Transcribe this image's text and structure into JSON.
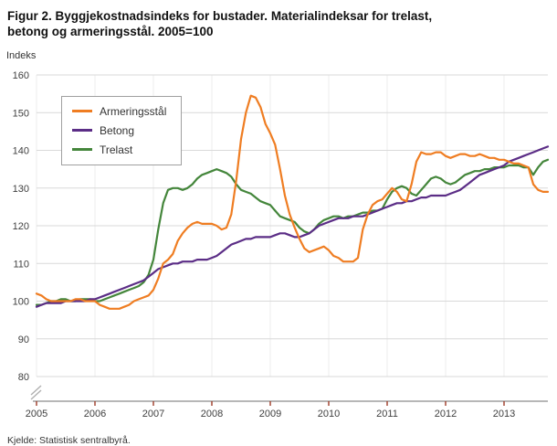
{
  "title_line1": "Figur 2. Byggjekostnadsindeks for bustader. Materialindeksar for trelast,",
  "title_line2": "betong og armeringsstål. 2005=100",
  "ylabel": "Indeks",
  "source": "Kjelde: Statistisk sentralbyrå.",
  "style": {
    "grid_color": "#d9d9d9",
    "vgrid_color": "#ececec",
    "axis_color": "#8c8c8c",
    "tick_color": "#9e3a26",
    "break_color": "#b0b0b0",
    "text_color": "#404040"
  },
  "chart_data": {
    "type": "line",
    "title": "Figur 2. Byggjekostnadsindeks for bustader. Materialindeksar for trelast, betong og armeringsstål. 2005=100",
    "xlabel": "",
    "ylabel": "Indeks",
    "x_start": 2005,
    "x_step": "monthly",
    "x_ticks": [
      2005,
      2006,
      2007,
      2008,
      2009,
      2010,
      2011,
      2012,
      2013
    ],
    "y_ticks": [
      80,
      90,
      100,
      110,
      120,
      130,
      140,
      150,
      160
    ],
    "ylim": [
      80,
      160
    ],
    "grid": true,
    "axis_break": true,
    "legend_position": "top-left",
    "series": [
      {
        "name": "Armeringsstål",
        "color": "#ef7d22",
        "values": [
          102,
          101.5,
          100.5,
          100,
          100,
          100,
          100,
          100,
          100.5,
          100.5,
          100,
          100,
          100,
          99,
          98.5,
          98,
          98,
          98,
          98.5,
          99,
          100,
          100.5,
          101,
          101.5,
          103,
          106,
          110,
          111,
          112.5,
          116,
          118,
          119.5,
          120.5,
          121,
          120.5,
          120.5,
          120.5,
          120,
          119,
          119.5,
          123,
          132,
          143,
          150,
          154.5,
          154,
          151.5,
          147,
          144.5,
          141.5,
          135,
          128,
          123,
          119.5,
          116.5,
          114,
          113,
          113.5,
          114,
          114.5,
          113.5,
          112,
          111.5,
          110.5,
          110.5,
          110.5,
          111.5,
          119,
          123,
          125.5,
          126.5,
          127,
          128.5,
          130,
          129,
          127,
          126.5,
          131,
          137,
          139.5,
          139,
          139,
          139.5,
          139.5,
          138.5,
          138,
          138.5,
          139,
          139,
          138.5,
          138.5,
          139,
          138.5,
          138,
          138,
          137.5,
          137.5,
          137,
          136.5,
          136.5,
          136,
          135.5,
          131,
          129.5,
          129,
          129
        ]
      },
      {
        "name": "Betong",
        "color": "#5b2d86",
        "values": [
          98.5,
          99,
          99.5,
          99.5,
          99.5,
          99.5,
          100,
          100,
          100,
          100,
          100,
          100.5,
          100.5,
          101,
          101.5,
          102,
          102.5,
          103,
          103.5,
          104,
          104.5,
          105,
          105.5,
          106.5,
          107.5,
          108.5,
          109,
          109.5,
          110,
          110,
          110.5,
          110.5,
          110.5,
          111,
          111,
          111,
          111.5,
          112,
          113,
          114,
          115,
          115.5,
          116,
          116.5,
          116.5,
          117,
          117,
          117,
          117,
          117.5,
          118,
          118,
          117.5,
          117,
          117,
          117.5,
          118,
          119,
          120,
          120.5,
          121,
          121.5,
          122,
          122,
          122,
          122.5,
          122.5,
          122.5,
          123,
          123.5,
          124,
          124.5,
          125,
          125.5,
          126,
          126,
          126.5,
          126.5,
          127,
          127.5,
          127.5,
          128,
          128,
          128,
          128,
          128.5,
          129,
          129.5,
          130.5,
          131.5,
          132.5,
          133.5,
          134,
          134.5,
          135,
          135.5,
          136,
          137,
          137.5,
          138,
          138.5,
          139,
          139.5,
          140,
          140.5,
          141
        ]
      },
      {
        "name": "Trelast",
        "color": "#44863b",
        "values": [
          99,
          99,
          99.5,
          100,
          100,
          100.5,
          100.5,
          100,
          100,
          100.5,
          100.5,
          100.5,
          100,
          100,
          100.5,
          101,
          101.5,
          102,
          102.5,
          103,
          103.5,
          104,
          105,
          107,
          111,
          119,
          126,
          129.5,
          130,
          130,
          129.5,
          130,
          131,
          132.5,
          133.5,
          134,
          134.5,
          135,
          134.5,
          134,
          133,
          131,
          129.5,
          129,
          128.5,
          127.5,
          126.5,
          126,
          125.5,
          124,
          122.5,
          122,
          121.5,
          121,
          119.5,
          118.5,
          118,
          119,
          120.5,
          121.5,
          122,
          122.5,
          122.5,
          122,
          122.5,
          122.5,
          123,
          123.5,
          123.5,
          124,
          124,
          124.5,
          127,
          129,
          130,
          130.5,
          130,
          128.5,
          128,
          129.5,
          131,
          132.5,
          133,
          132.5,
          131.5,
          131,
          131.5,
          132.5,
          133.5,
          134,
          134.5,
          134.5,
          135,
          135,
          135.5,
          135.5,
          135.5,
          136,
          136,
          136,
          135.5,
          135.5,
          133.5,
          135.5,
          137,
          137.5
        ]
      }
    ]
  }
}
